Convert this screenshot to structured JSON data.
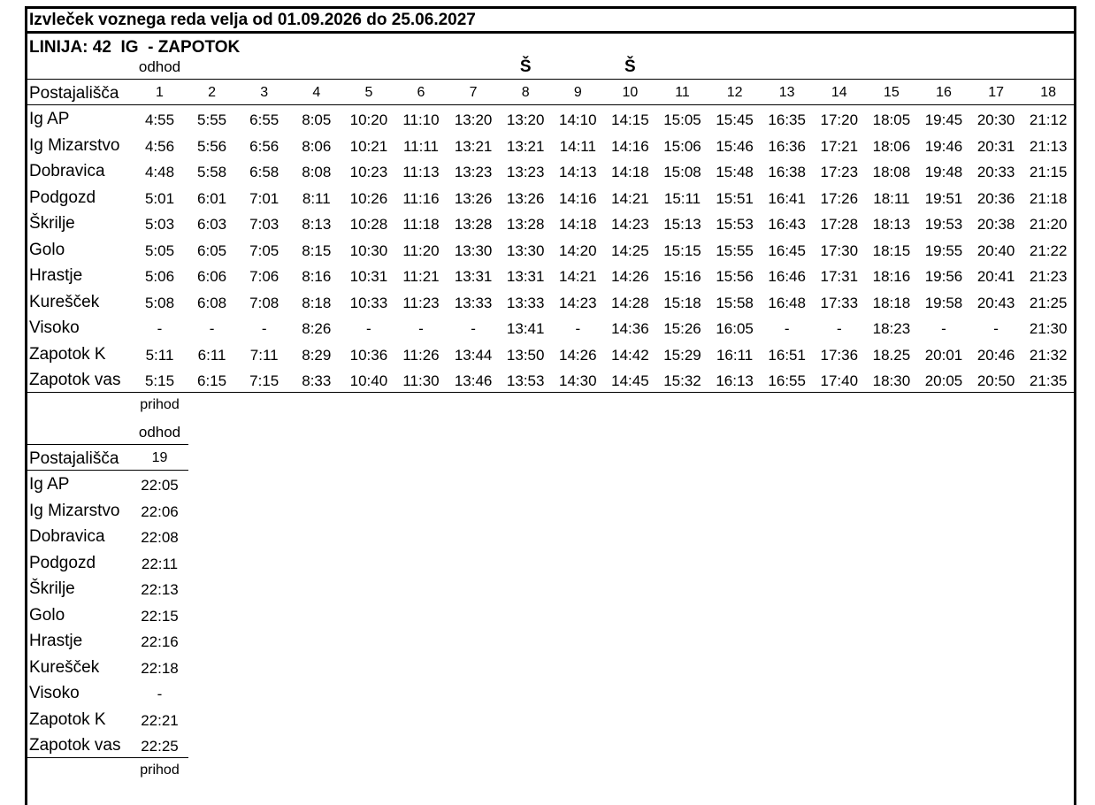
{
  "header": {
    "title": "Izvleček voznega reda velja od 01.09.2026 do 25.06.2027",
    "line": "LINIJA: 42  IG  - ZAPOTOK"
  },
  "table1": {
    "departure": "odhod",
    "markers": [
      null,
      null,
      null,
      null,
      null,
      null,
      null,
      "Š",
      null,
      "Š",
      null,
      null,
      null,
      null,
      null,
      null,
      null,
      null
    ],
    "stops_header": "Postajališča",
    "columns": [
      1,
      2,
      3,
      4,
      5,
      6,
      7,
      8,
      9,
      10,
      11,
      12,
      13,
      14,
      15,
      16,
      17,
      18
    ],
    "rows": [
      {
        "stop": "Ig AP",
        "times": [
          "4:55",
          "5:55",
          "6:55",
          "8:05",
          "10:20",
          "11:10",
          "13:20",
          "13:20",
          "14:10",
          "14:15",
          "15:05",
          "15:45",
          "16:35",
          "17:20",
          "18:05",
          "19:45",
          "20:30",
          "21:12"
        ]
      },
      {
        "stop": "Ig Mizarstvo",
        "times": [
          "4:56",
          "5:56",
          "6:56",
          "8:06",
          "10:21",
          "11:11",
          "13:21",
          "13:21",
          "14:11",
          "14:16",
          "15:06",
          "15:46",
          "16:36",
          "17:21",
          "18:06",
          "19:46",
          "20:31",
          "21:13"
        ]
      },
      {
        "stop": "Dobravica",
        "times": [
          "4:48",
          "5:58",
          "6:58",
          "8:08",
          "10:23",
          "11:13",
          "13:23",
          "13:23",
          "14:13",
          "14:18",
          "15:08",
          "15:48",
          "16:38",
          "17:23",
          "18:08",
          "19:48",
          "20:33",
          "21:15"
        ]
      },
      {
        "stop": "Podgozd",
        "times": [
          "5:01",
          "6:01",
          "7:01",
          "8:11",
          "10:26",
          "11:16",
          "13:26",
          "13:26",
          "14:16",
          "14:21",
          "15:11",
          "15:51",
          "16:41",
          "17:26",
          "18:11",
          "19:51",
          "20:36",
          "21:18"
        ]
      },
      {
        "stop": "Škrilje",
        "times": [
          "5:03",
          "6:03",
          "7:03",
          "8:13",
          "10:28",
          "11:18",
          "13:28",
          "13:28",
          "14:18",
          "14:23",
          "15:13",
          "15:53",
          "16:43",
          "17:28",
          "18:13",
          "19:53",
          "20:38",
          "21:20"
        ]
      },
      {
        "stop": "Golo",
        "times": [
          "5:05",
          "6:05",
          "7:05",
          "8:15",
          "10:30",
          "11:20",
          "13:30",
          "13:30",
          "14:20",
          "14:25",
          "15:15",
          "15:55",
          "16:45",
          "17:30",
          "18:15",
          "19:55",
          "20:40",
          "21:22"
        ]
      },
      {
        "stop": "Hrastje",
        "times": [
          "5:06",
          "6:06",
          "7:06",
          "8:16",
          "10:31",
          "11:21",
          "13:31",
          "13:31",
          "14:21",
          "14:26",
          "15:16",
          "15:56",
          "16:46",
          "17:31",
          "18:16",
          "19:56",
          "20:41",
          "21:23"
        ]
      },
      {
        "stop": "Kurešček",
        "times": [
          "5:08",
          "6:08",
          "7:08",
          "8:18",
          "10:33",
          "11:23",
          "13:33",
          "13:33",
          "14:23",
          "14:28",
          "15:18",
          "15:58",
          "16:48",
          "17:33",
          "18:18",
          "19:58",
          "20:43",
          "21:25"
        ]
      },
      {
        "stop": "Visoko",
        "times": [
          "-",
          "-",
          "-",
          "8:26",
          "-",
          "-",
          "-",
          "13:41",
          "-",
          "14:36",
          "15:26",
          "16:05",
          "-",
          "-",
          "18:23",
          "-",
          "-",
          "21:30"
        ]
      },
      {
        "stop": "Zapotok K",
        "times": [
          "5:11",
          "6:11",
          "7:11",
          "8:29",
          "10:36",
          "11:26",
          "13:44",
          "13:50",
          "14:26",
          "14:42",
          "15:29",
          "16:11",
          "16:51",
          "17:36",
          "18.25",
          "20:01",
          "20:46",
          "21:32"
        ]
      },
      {
        "stop": "Zapotok vas",
        "times": [
          "5:15",
          "6:15",
          "7:15",
          "8:33",
          "10:40",
          "11:30",
          "13:46",
          "13:53",
          "14:30",
          "14:45",
          "15:32",
          "16:13",
          "16:55",
          "17:40",
          "18:30",
          "20:05",
          "20:50",
          "21:35"
        ]
      }
    ],
    "arrival": "prihod"
  },
  "table2": {
    "departure": "odhod",
    "stops_header": "Postajališča",
    "columns": [
      19
    ],
    "rows": [
      {
        "stop": "Ig AP",
        "times": [
          "22:05"
        ]
      },
      {
        "stop": "Ig Mizarstvo",
        "times": [
          "22:06"
        ]
      },
      {
        "stop": "Dobravica",
        "times": [
          "22:08"
        ]
      },
      {
        "stop": "Podgozd",
        "times": [
          "22:11"
        ]
      },
      {
        "stop": "Škrilje",
        "times": [
          "22:13"
        ]
      },
      {
        "stop": "Golo",
        "times": [
          "22:15"
        ]
      },
      {
        "stop": "Hrastje",
        "times": [
          "22:16"
        ]
      },
      {
        "stop": "Kurešček",
        "times": [
          "22:18"
        ]
      },
      {
        "stop": "Visoko",
        "times": [
          "-"
        ]
      },
      {
        "stop": "Zapotok K",
        "times": [
          "22:21"
        ]
      },
      {
        "stop": "Zapotok vas",
        "times": [
          "22:25"
        ]
      }
    ],
    "arrival": "prihod"
  }
}
